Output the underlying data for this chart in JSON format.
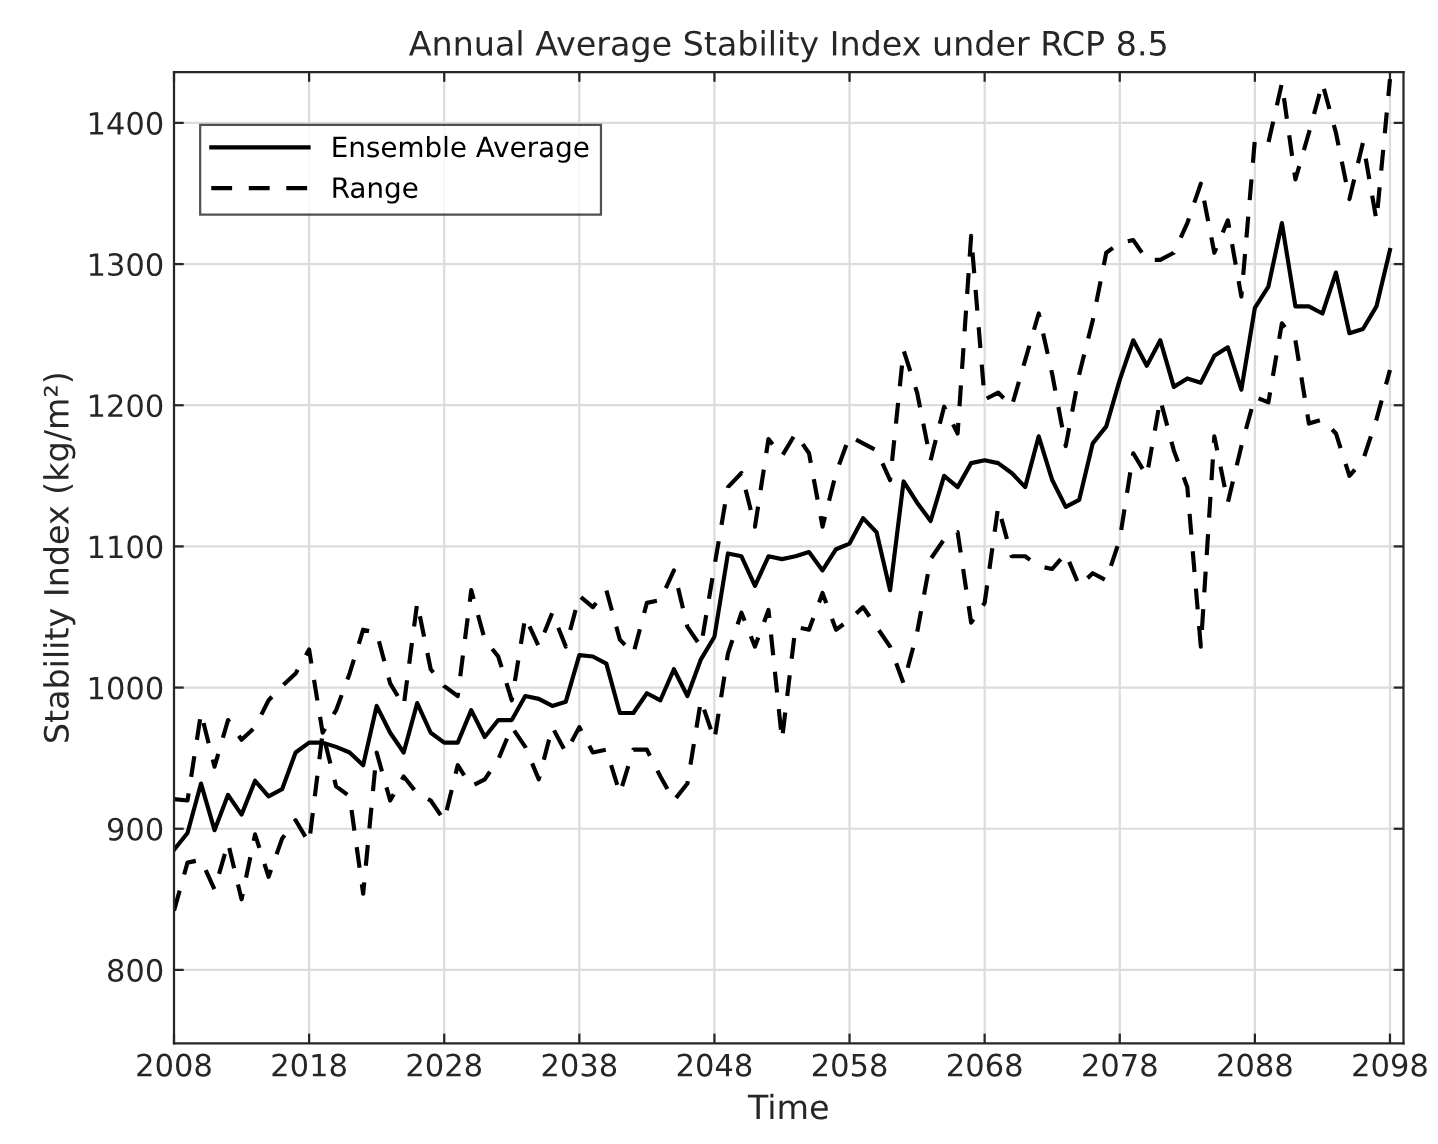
{
  "chart_data": {
    "type": "line",
    "title": "Annual Average Stability Index under RCP 8.5",
    "xlabel": "Time",
    "ylabel": "Stability Index (kg/m²)",
    "x": [
      2008,
      2009,
      2010,
      2011,
      2012,
      2013,
      2014,
      2015,
      2016,
      2017,
      2018,
      2019,
      2020,
      2021,
      2022,
      2023,
      2024,
      2025,
      2026,
      2027,
      2028,
      2029,
      2030,
      2031,
      2032,
      2033,
      2034,
      2035,
      2036,
      2037,
      2038,
      2039,
      2040,
      2041,
      2042,
      2043,
      2044,
      2045,
      2046,
      2047,
      2048,
      2049,
      2050,
      2051,
      2052,
      2053,
      2054,
      2055,
      2056,
      2057,
      2058,
      2059,
      2060,
      2061,
      2062,
      2063,
      2064,
      2065,
      2066,
      2067,
      2068,
      2069,
      2070,
      2071,
      2072,
      2073,
      2074,
      2075,
      2076,
      2077,
      2078,
      2079,
      2080,
      2081,
      2082,
      2083,
      2084,
      2085,
      2086,
      2087,
      2088,
      2089,
      2090,
      2091,
      2092,
      2093,
      2094,
      2095,
      2096,
      2097,
      2098
    ],
    "series": [
      {
        "name": "Ensemble Average",
        "color": "#000000",
        "line_style": "solid",
        "values": [
          885,
          897,
          932,
          899,
          924,
          910,
          934,
          923,
          928,
          954,
          961,
          961,
          958,
          954,
          945,
          987,
          968,
          954,
          989,
          968,
          961,
          961,
          984,
          965,
          977,
          977,
          994,
          992,
          987,
          990,
          1023,
          1022,
          1017,
          982,
          982,
          996,
          991,
          1013,
          994,
          1020,
          1036,
          1095,
          1093,
          1072,
          1093,
          1091,
          1093,
          1096,
          1083,
          1098,
          1102,
          1120,
          1110,
          1069,
          1146,
          1131,
          1118,
          1150,
          1142,
          1159,
          1161,
          1159,
          1152,
          1142,
          1178,
          1147,
          1128,
          1133,
          1173,
          1185,
          1218,
          1246,
          1228,
          1246,
          1213,
          1219,
          1216,
          1235,
          1241,
          1211,
          1269,
          1284,
          1329,
          1270,
          1270,
          1265,
          1294,
          1251,
          1254,
          1270,
          1310
        ]
      },
      {
        "name": "Range",
        "color": "#000000",
        "line_style": "dashed",
        "values": [
          921,
          920,
          982,
          944,
          977,
          963,
          972,
          991,
          1001,
          1010,
          1027,
          968,
          984,
          1010,
          1041,
          1039,
          1003,
          987,
          1060,
          1013,
          1001,
          994,
          1069,
          1034,
          1022,
          991,
          1050,
          1029,
          1053,
          1029,
          1065,
          1057,
          1069,
          1034,
          1024,
          1060,
          1062,
          1083,
          1043,
          1029,
          1086,
          1142,
          1152,
          1114,
          1176,
          1164,
          1180,
          1166,
          1114,
          1152,
          1178,
          1173,
          1168,
          1147,
          1239,
          1209,
          1161,
          1199,
          1180,
          1320,
          1204,
          1209,
          1199,
          1232,
          1265,
          1222,
          1171,
          1222,
          1260,
          1308,
          1315,
          1317,
          1303,
          1303,
          1308,
          1329,
          1357,
          1308,
          1331,
          1277,
          1388,
          1386,
          1428,
          1360,
          1393,
          1428,
          1393,
          1346,
          1386,
          1331,
          1431
        ]
      },
      {
        "color": "#000000",
        "line_style": "dashed",
        "values": [
          842,
          876,
          878,
          857,
          890,
          850,
          896,
          866,
          893,
          906,
          890,
          968,
          930,
          923,
          854,
          954,
          920,
          937,
          925,
          920,
          906,
          945,
          930,
          935,
          949,
          972,
          958,
          935,
          972,
          954,
          972,
          954,
          956,
          925,
          956,
          956,
          937,
          920,
          932,
          991,
          963,
          1024,
          1053,
          1029,
          1055,
          963,
          1043,
          1041,
          1067,
          1041,
          1048,
          1057,
          1043,
          1029,
          1003,
          1039,
          1091,
          1105,
          1110,
          1046,
          1060,
          1128,
          1093,
          1093,
          1086,
          1084,
          1095,
          1072,
          1081,
          1076,
          1105,
          1166,
          1150,
          1204,
          1168,
          1142,
          1029,
          1178,
          1131,
          1171,
          1206,
          1202,
          1258,
          1246,
          1187,
          1190,
          1180,
          1150,
          1161,
          1190,
          1225
        ]
      }
    ],
    "xlim": [
      2008,
      2099
    ],
    "xticks": [
      2008,
      2018,
      2028,
      2038,
      2048,
      2058,
      2068,
      2078,
      2088,
      2098
    ],
    "ylim": [
      748,
      1436
    ],
    "yticks": [
      800,
      900,
      1000,
      1100,
      1200,
      1300,
      1400
    ],
    "grid": true,
    "legend": "top left",
    "marker": "none"
  }
}
